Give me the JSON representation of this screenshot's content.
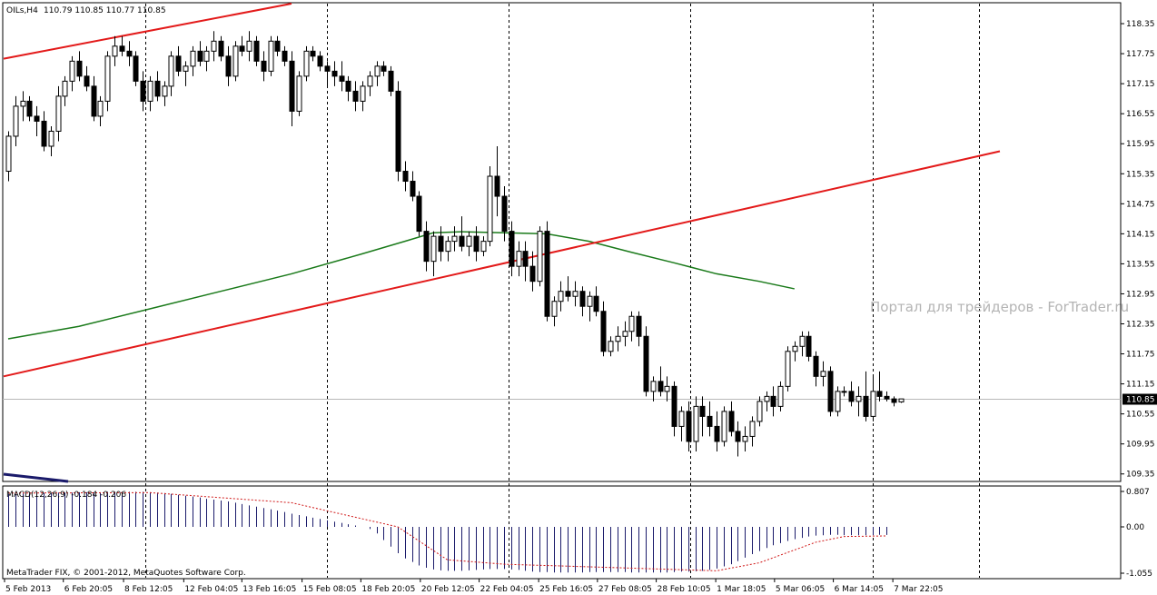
{
  "header": {
    "symbol": "OILs,H4",
    "quote": "110.79 110.85 110.77 110.85"
  },
  "watermark": "Портал для трейдеров - ForTrader.ru",
  "copyright": "MetaTrader FIX, © 2001-2012, MetaQuotes Software Corp.",
  "price_axis": {
    "ticks": [
      "118.35",
      "117.75",
      "117.15",
      "116.55",
      "115.95",
      "115.35",
      "114.75",
      "114.15",
      "113.55",
      "112.95",
      "112.35",
      "111.75",
      "111.15",
      "110.55",
      "109.95",
      "109.35"
    ],
    "current": "110.85"
  },
  "indicator": {
    "label": "MACD(12,26,9) -0.184 -0.206",
    "ticks": [
      "0.807",
      "0.00",
      "-1.055"
    ]
  },
  "time_axis": [
    "5 Feb 2013",
    "6 Feb 20:05",
    "8 Feb 12:05",
    "12 Feb 04:05",
    "13 Feb 16:05",
    "15 Feb 08:05",
    "18 Feb 20:05",
    "20 Feb 12:05",
    "22 Feb 04:05",
    "25 Feb 16:05",
    "27 Feb 08:05",
    "28 Feb 10:05",
    "1 Mar 18:05",
    "5 Mar 06:05",
    "6 Mar 14:05",
    "7 Mar 22:05"
  ],
  "colors": {
    "bull": "#ffffff",
    "bear": "#000000",
    "trendline": "#e31a1a",
    "ma": "#1a7a1a",
    "macd_hist": "#1a1a6a",
    "macd_signal": "#d01818"
  },
  "chart_data": {
    "type": "candlestick",
    "symbol": "OILs",
    "timeframe": "H4",
    "ylim": [
      109.2,
      118.75
    ],
    "ohlc": [
      [
        115.4,
        116.2,
        115.2,
        116.1
      ],
      [
        116.1,
        116.9,
        115.9,
        116.7
      ],
      [
        116.7,
        117.0,
        116.4,
        116.8
      ],
      [
        116.8,
        116.9,
        116.4,
        116.5
      ],
      [
        116.5,
        116.7,
        116.1,
        116.4
      ],
      [
        116.4,
        116.6,
        115.8,
        115.9
      ],
      [
        115.9,
        116.3,
        115.7,
        116.2
      ],
      [
        116.2,
        117.1,
        116.0,
        116.9
      ],
      [
        116.9,
        117.3,
        116.7,
        117.2
      ],
      [
        117.2,
        117.7,
        117.0,
        117.6
      ],
      [
        117.6,
        117.8,
        117.2,
        117.3
      ],
      [
        117.3,
        117.5,
        117.0,
        117.1
      ],
      [
        117.1,
        117.3,
        116.4,
        116.5
      ],
      [
        116.5,
        116.9,
        116.3,
        116.8
      ],
      [
        116.8,
        117.8,
        116.6,
        117.7
      ],
      [
        117.7,
        118.1,
        117.5,
        117.9
      ],
      [
        117.9,
        118.1,
        117.7,
        117.8
      ],
      [
        117.8,
        118.0,
        117.5,
        117.7
      ],
      [
        117.7,
        117.8,
        117.1,
        117.2
      ],
      [
        117.2,
        117.4,
        116.6,
        116.8
      ],
      [
        116.8,
        117.3,
        116.6,
        117.2
      ],
      [
        117.2,
        117.4,
        116.8,
        116.9
      ],
      [
        116.9,
        117.2,
        116.7,
        117.1
      ],
      [
        117.1,
        117.8,
        116.9,
        117.7
      ],
      [
        117.7,
        117.9,
        117.3,
        117.4
      ],
      [
        117.4,
        117.6,
        117.1,
        117.5
      ],
      [
        117.5,
        117.9,
        117.3,
        117.8
      ],
      [
        117.8,
        118.0,
        117.5,
        117.6
      ],
      [
        117.6,
        117.9,
        117.4,
        117.8
      ],
      [
        117.8,
        118.2,
        117.6,
        118.0
      ],
      [
        118.0,
        118.1,
        117.6,
        117.7
      ],
      [
        117.7,
        117.9,
        117.1,
        117.3
      ],
      [
        117.3,
        118.0,
        117.2,
        117.9
      ],
      [
        117.9,
        118.1,
        117.7,
        117.8
      ],
      [
        117.8,
        118.2,
        117.6,
        118.0
      ],
      [
        118.0,
        118.1,
        117.5,
        117.6
      ],
      [
        117.6,
        117.8,
        117.2,
        117.4
      ],
      [
        117.4,
        118.1,
        117.3,
        118.0
      ],
      [
        118.0,
        118.1,
        117.7,
        117.8
      ],
      [
        117.8,
        117.9,
        117.5,
        117.6
      ],
      [
        117.6,
        117.8,
        116.3,
        116.6
      ],
      [
        116.6,
        117.4,
        116.5,
        117.3
      ],
      [
        117.3,
        117.9,
        117.2,
        117.8
      ],
      [
        117.8,
        117.9,
        117.6,
        117.7
      ],
      [
        117.7,
        117.8,
        117.4,
        117.5
      ],
      [
        117.5,
        117.6,
        117.1,
        117.4
      ],
      [
        117.4,
        117.6,
        117.1,
        117.3
      ],
      [
        117.3,
        117.6,
        117.0,
        117.2
      ],
      [
        117.2,
        117.3,
        116.8,
        117.0
      ],
      [
        117.0,
        117.2,
        116.6,
        116.8
      ],
      [
        116.8,
        117.2,
        116.6,
        117.1
      ],
      [
        117.1,
        117.4,
        116.9,
        117.3
      ],
      [
        117.3,
        117.6,
        117.1,
        117.5
      ],
      [
        117.5,
        117.6,
        117.3,
        117.4
      ],
      [
        117.4,
        117.5,
        116.9,
        117.0
      ],
      [
        117.0,
        117.2,
        115.2,
        115.4
      ],
      [
        115.4,
        115.6,
        115.0,
        115.2
      ],
      [
        115.2,
        115.4,
        114.8,
        114.9
      ],
      [
        114.9,
        115.0,
        114.1,
        114.2
      ],
      [
        114.2,
        114.4,
        113.4,
        113.6
      ],
      [
        113.6,
        114.2,
        113.3,
        114.1
      ],
      [
        114.1,
        114.3,
        113.6,
        113.8
      ],
      [
        113.8,
        114.1,
        113.6,
        114.0
      ],
      [
        114.0,
        114.3,
        113.8,
        114.1
      ],
      [
        114.1,
        114.5,
        113.8,
        113.9
      ],
      [
        113.9,
        114.2,
        113.7,
        114.1
      ],
      [
        114.1,
        114.3,
        113.6,
        113.8
      ],
      [
        113.8,
        114.1,
        113.7,
        114.0
      ],
      [
        114.0,
        115.5,
        113.9,
        115.3
      ],
      [
        115.3,
        115.9,
        114.5,
        114.9
      ],
      [
        114.9,
        115.1,
        114.0,
        114.2
      ],
      [
        114.2,
        114.4,
        113.3,
        113.5
      ],
      [
        113.5,
        114.0,
        113.3,
        113.8
      ],
      [
        113.8,
        114.0,
        113.2,
        113.5
      ],
      [
        113.5,
        113.8,
        113.0,
        113.2
      ],
      [
        113.2,
        114.3,
        113.1,
        114.2
      ],
      [
        114.2,
        114.4,
        112.4,
        112.5
      ],
      [
        112.5,
        112.9,
        112.3,
        112.8
      ],
      [
        112.8,
        113.2,
        112.6,
        113.0
      ],
      [
        113.0,
        113.3,
        112.8,
        112.9
      ],
      [
        112.9,
        113.2,
        112.7,
        113.0
      ],
      [
        113.0,
        113.1,
        112.5,
        112.7
      ],
      [
        112.7,
        113.0,
        112.4,
        112.9
      ],
      [
        112.9,
        113.1,
        112.5,
        112.6
      ],
      [
        112.6,
        112.8,
        111.7,
        111.8
      ],
      [
        111.8,
        112.1,
        111.7,
        112.0
      ],
      [
        112.0,
        112.3,
        111.8,
        112.1
      ],
      [
        112.1,
        112.4,
        111.9,
        112.2
      ],
      [
        112.2,
        112.6,
        112.0,
        112.5
      ],
      [
        112.5,
        112.6,
        111.9,
        112.1
      ],
      [
        112.1,
        112.3,
        110.9,
        111.0
      ],
      [
        111.0,
        111.3,
        110.8,
        111.2
      ],
      [
        111.2,
        111.5,
        110.9,
        111.0
      ],
      [
        111.0,
        111.3,
        110.8,
        111.1
      ],
      [
        111.1,
        111.2,
        110.1,
        110.3
      ],
      [
        110.3,
        110.7,
        110.0,
        110.6
      ],
      [
        110.6,
        110.8,
        109.8,
        110.0
      ],
      [
        110.0,
        110.9,
        109.8,
        110.7
      ],
      [
        110.7,
        110.9,
        110.1,
        110.5
      ],
      [
        110.5,
        110.8,
        110.1,
        110.3
      ],
      [
        110.3,
        110.6,
        109.8,
        110.0
      ],
      [
        110.0,
        110.7,
        109.9,
        110.6
      ],
      [
        110.6,
        110.8,
        110.1,
        110.2
      ],
      [
        110.2,
        110.4,
        109.7,
        110.0
      ],
      [
        110.0,
        110.3,
        109.8,
        110.1
      ],
      [
        110.1,
        110.5,
        109.9,
        110.4
      ],
      [
        110.4,
        110.9,
        110.3,
        110.8
      ],
      [
        110.8,
        111.0,
        110.6,
        110.9
      ],
      [
        110.9,
        111.1,
        110.5,
        110.7
      ],
      [
        110.7,
        111.2,
        110.6,
        111.1
      ],
      [
        111.1,
        111.9,
        111.0,
        111.8
      ],
      [
        111.8,
        112.0,
        111.6,
        111.9
      ],
      [
        111.9,
        112.2,
        111.7,
        112.1
      ],
      [
        112.1,
        112.2,
        111.6,
        111.7
      ],
      [
        111.7,
        111.8,
        111.1,
        111.3
      ],
      [
        111.3,
        111.6,
        111.1,
        111.4
      ],
      [
        111.4,
        111.5,
        110.5,
        110.6
      ],
      [
        110.6,
        111.1,
        110.5,
        111.0
      ],
      [
        111.0,
        111.1,
        110.9,
        111.0
      ],
      [
        111.0,
        111.2,
        110.7,
        110.8
      ],
      [
        110.8,
        111.1,
        110.5,
        110.9
      ],
      [
        110.9,
        111.4,
        110.4,
        110.5
      ],
      [
        110.5,
        111.3,
        110.4,
        111.0
      ],
      [
        111.0,
        111.4,
        110.8,
        110.9
      ],
      [
        110.9,
        111.0,
        110.8,
        110.85
      ],
      [
        110.85,
        110.9,
        110.7,
        110.78
      ],
      [
        110.79,
        110.85,
        110.77,
        110.85
      ]
    ],
    "moving_average": [
      [
        0,
        112.05
      ],
      [
        10,
        112.3
      ],
      [
        20,
        112.65
      ],
      [
        30,
        113.0
      ],
      [
        40,
        113.35
      ],
      [
        50,
        113.75
      ],
      [
        56,
        114.0
      ],
      [
        60,
        114.17
      ],
      [
        64,
        114.19
      ],
      [
        70,
        114.17
      ],
      [
        76,
        114.15
      ],
      [
        82,
        114.0
      ],
      [
        88,
        113.78
      ],
      [
        94,
        113.57
      ],
      [
        100,
        113.35
      ],
      [
        106,
        113.2
      ],
      [
        111,
        113.05
      ]
    ],
    "trendlines": [
      {
        "from": [
          0,
          117.65
        ],
        "to": [
          40,
          118.75
        ]
      },
      {
        "from": [
          0,
          111.3
        ],
        "to": [
          140,
          115.8
        ]
      }
    ],
    "macd": {
      "ylim": [
        -1.055,
        0.807
      ],
      "histogram": [
        0.75,
        0.75,
        0.76,
        0.76,
        0.77,
        0.77,
        0.77,
        0.78,
        0.78,
        0.78,
        0.79,
        0.79,
        0.79,
        0.79,
        0.8,
        0.8,
        0.8,
        0.8,
        0.8,
        0.8,
        0.79,
        0.78,
        0.77,
        0.75,
        0.73,
        0.71,
        0.69,
        0.67,
        0.64,
        0.62,
        0.6,
        0.58,
        0.55,
        0.52,
        0.49,
        0.46,
        0.43,
        0.4,
        0.37,
        0.34,
        0.3,
        0.27,
        0.24,
        0.21,
        0.18,
        0.15,
        0.12,
        0.09,
        0.06,
        0.03,
        0.0,
        -0.05,
        -0.15,
        -0.3,
        -0.45,
        -0.6,
        -0.72,
        -0.8,
        -0.88,
        -0.93,
        -0.97,
        -0.99,
        -1.0,
        -1.0,
        -1.0,
        -0.99,
        -0.98,
        -0.97,
        -0.96,
        -0.96,
        -0.96,
        -0.97,
        -0.98,
        -1.0,
        -1.02,
        -1.03,
        -1.03,
        -1.04,
        -1.04,
        -1.04,
        -1.04,
        -1.04,
        -1.03,
        -1.03,
        -1.03,
        -1.03,
        -1.03,
        -1.03,
        -1.04,
        -1.04,
        -1.04,
        -1.04,
        -1.04,
        -1.04,
        -1.03,
        -1.02,
        -1.02,
        -1.01,
        -1.0,
        -0.98,
        -0.95,
        -0.9,
        -0.85,
        -0.78,
        -0.7,
        -0.62,
        -0.55,
        -0.48,
        -0.42,
        -0.37,
        -0.32,
        -0.28,
        -0.25,
        -0.22,
        -0.2,
        -0.19,
        -0.18,
        -0.18,
        -0.19,
        -0.19,
        -0.19,
        -0.19,
        -0.19,
        -0.18,
        -0.184
      ],
      "signal": [
        [
          0,
          0.77
        ],
        [
          20,
          0.78
        ],
        [
          40,
          0.55
        ],
        [
          55,
          0.0
        ],
        [
          62,
          -0.75
        ],
        [
          70,
          -0.85
        ],
        [
          80,
          -0.9
        ],
        [
          90,
          -0.95
        ],
        [
          100,
          -1.0
        ],
        [
          106,
          -0.82
        ],
        [
          114,
          -0.35
        ],
        [
          118,
          -0.22
        ],
        [
          124,
          -0.206
        ]
      ]
    }
  }
}
